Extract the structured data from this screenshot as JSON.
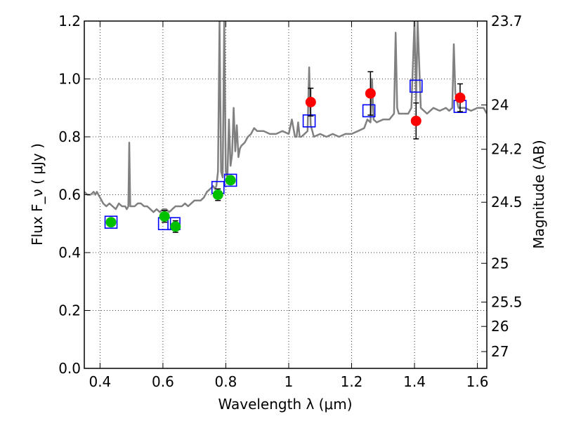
{
  "chart_data": {
    "type": "scatter",
    "xlabel": "Wavelength  λ (μm)",
    "ylabel": "Flux  F_ν  ( μJy )",
    "y2label": "Magnitude (AB)",
    "xlim": [
      0.35,
      1.63
    ],
    "ylim": [
      0.0,
      1.2
    ],
    "grid": true,
    "x_ticks": [
      {
        "value": 0.4,
        "label": "0.4"
      },
      {
        "value": 0.6,
        "label": "0.6"
      },
      {
        "value": 0.8,
        "label": "0.8"
      },
      {
        "value": 1.0,
        "label": "1"
      },
      {
        "value": 1.2,
        "label": "1.2"
      },
      {
        "value": 1.4,
        "label": "1.4"
      },
      {
        "value": 1.6,
        "label": "1.6"
      }
    ],
    "y_ticks": [
      {
        "value": 0.0,
        "label": "0.0"
      },
      {
        "value": 0.2,
        "label": "0.2"
      },
      {
        "value": 0.4,
        "label": "0.4"
      },
      {
        "value": 0.6,
        "label": "0.6"
      },
      {
        "value": 0.8,
        "label": "0.8"
      },
      {
        "value": 1.0,
        "label": "1.0"
      },
      {
        "value": 1.2,
        "label": "1.2"
      }
    ],
    "y2_ticks": [
      {
        "label": "23.7",
        "flux": 1.2
      },
      {
        "label": "24",
        "flux": 0.91
      },
      {
        "label": "24.2",
        "flux": 0.757
      },
      {
        "label": "24.5",
        "flux": 0.574
      },
      {
        "label": "25",
        "flux": 0.363
      },
      {
        "label": "25.5",
        "flux": 0.229
      },
      {
        "label": "26",
        "flux": 0.145
      },
      {
        "label": "27",
        "flux": 0.058
      }
    ],
    "series": [
      {
        "kind": "spectrum",
        "color": "#808080",
        "x": [
          0.35,
          0.36,
          0.37,
          0.38,
          0.385,
          0.39,
          0.4,
          0.41,
          0.42,
          0.43,
          0.44,
          0.45,
          0.46,
          0.47,
          0.48,
          0.485,
          0.49,
          0.493,
          0.496,
          0.5,
          0.51,
          0.52,
          0.53,
          0.54,
          0.55,
          0.56,
          0.57,
          0.58,
          0.59,
          0.6,
          0.61,
          0.62,
          0.63,
          0.64,
          0.65,
          0.66,
          0.67,
          0.68,
          0.69,
          0.7,
          0.71,
          0.72,
          0.73,
          0.74,
          0.75,
          0.76,
          0.765,
          0.77,
          0.775,
          0.78,
          0.785,
          0.79,
          0.795,
          0.8,
          0.805,
          0.81,
          0.815,
          0.82,
          0.825,
          0.83,
          0.835,
          0.84,
          0.845,
          0.85,
          0.86,
          0.87,
          0.88,
          0.89,
          0.9,
          0.92,
          0.94,
          0.96,
          0.98,
          1.0,
          1.01,
          1.02,
          1.025,
          1.03,
          1.035,
          1.04,
          1.05,
          1.06,
          1.065,
          1.07,
          1.075,
          1.08,
          1.1,
          1.12,
          1.14,
          1.16,
          1.18,
          1.2,
          1.22,
          1.24,
          1.25,
          1.26,
          1.265,
          1.27,
          1.28,
          1.3,
          1.32,
          1.335,
          1.34,
          1.345,
          1.35,
          1.36,
          1.38,
          1.39,
          1.4,
          1.405,
          1.41,
          1.42,
          1.43,
          1.44,
          1.45,
          1.46,
          1.48,
          1.5,
          1.51,
          1.52,
          1.525,
          1.53,
          1.54,
          1.56,
          1.58,
          1.6,
          1.62,
          1.63
        ],
        "y": [
          0.61,
          0.6,
          0.6,
          0.61,
          0.6,
          0.61,
          0.59,
          0.57,
          0.56,
          0.57,
          0.56,
          0.55,
          0.57,
          0.56,
          0.56,
          0.55,
          0.56,
          0.78,
          0.56,
          0.56,
          0.56,
          0.57,
          0.57,
          0.56,
          0.56,
          0.55,
          0.54,
          0.55,
          0.54,
          0.55,
          0.55,
          0.54,
          0.55,
          0.56,
          0.56,
          0.56,
          0.57,
          0.56,
          0.57,
          0.58,
          0.58,
          0.58,
          0.59,
          0.61,
          0.62,
          0.63,
          0.62,
          0.63,
          0.68,
          1.2,
          0.68,
          0.66,
          1.2,
          0.68,
          0.66,
          0.86,
          0.7,
          0.74,
          0.9,
          0.75,
          0.84,
          0.73,
          0.76,
          0.77,
          0.78,
          0.8,
          0.81,
          0.83,
          0.82,
          0.82,
          0.81,
          0.81,
          0.82,
          0.81,
          0.86,
          0.8,
          0.8,
          0.85,
          0.8,
          0.8,
          0.81,
          0.82,
          1.04,
          0.84,
          0.82,
          0.8,
          0.81,
          0.8,
          0.81,
          0.8,
          0.81,
          0.81,
          0.82,
          0.83,
          0.86,
          0.85,
          1.0,
          0.86,
          0.85,
          0.86,
          0.86,
          0.88,
          1.16,
          0.9,
          0.88,
          0.88,
          0.88,
          0.9,
          1.2,
          0.92,
          1.2,
          0.9,
          0.89,
          0.88,
          0.89,
          0.9,
          0.89,
          0.9,
          0.89,
          0.9,
          1.12,
          0.95,
          0.9,
          0.9,
          0.89,
          0.9,
          0.9,
          0.88
        ]
      },
      {
        "kind": "model-photometry",
        "marker": "open-square",
        "color": "#0000ff",
        "points": [
          {
            "x": 0.435,
            "y": 0.505
          },
          {
            "x": 0.605,
            "y": 0.5
          },
          {
            "x": 0.635,
            "y": 0.5
          },
          {
            "x": 0.775,
            "y": 0.625
          },
          {
            "x": 0.815,
            "y": 0.65
          },
          {
            "x": 1.065,
            "y": 0.855
          },
          {
            "x": 1.255,
            "y": 0.89
          },
          {
            "x": 1.405,
            "y": 0.975
          },
          {
            "x": 1.545,
            "y": 0.905
          }
        ]
      },
      {
        "kind": "optical-photometry",
        "marker": "filled-circle",
        "color": "#00c000",
        "points": [
          {
            "x": 0.435,
            "y": 0.505,
            "err": 0
          },
          {
            "x": 0.605,
            "y": 0.525,
            "err": 0.02
          },
          {
            "x": 0.64,
            "y": 0.49,
            "err": 0.02
          },
          {
            "x": 0.775,
            "y": 0.6,
            "err": 0.02
          },
          {
            "x": 0.815,
            "y": 0.65,
            "err": 0
          }
        ]
      },
      {
        "kind": "nir-photometry",
        "marker": "filled-circle",
        "color": "#ff0000",
        "points": [
          {
            "x": 1.07,
            "y": 0.92,
            "err": 0.048
          },
          {
            "x": 1.26,
            "y": 0.95,
            "err": 0.075
          },
          {
            "x": 1.405,
            "y": 0.855,
            "err": 0.062
          },
          {
            "x": 1.545,
            "y": 0.935,
            "err": 0.048
          }
        ]
      }
    ]
  }
}
